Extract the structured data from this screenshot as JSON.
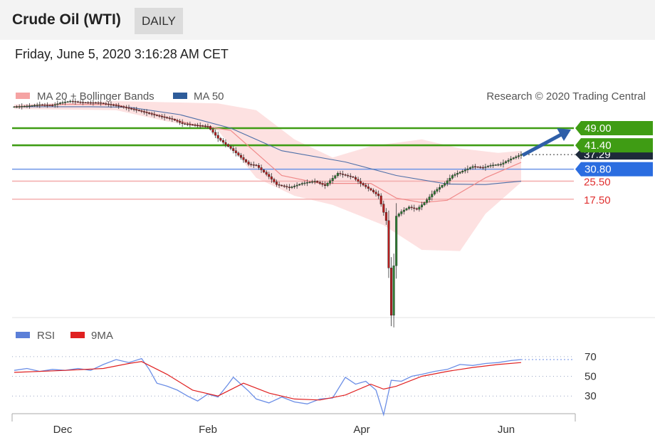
{
  "header": {
    "title": "Crude Oil (WTI)",
    "period": "DAILY"
  },
  "timestamp": "Friday, June 5, 2020 3:16:28 AM CET",
  "chart_data": [
    {
      "type": "candlestick",
      "legend": [
        {
          "label": "MA 20 + Bollinger Bands",
          "color": "#f08a8a"
        },
        {
          "label": "MA 50",
          "color": "#2e5c9a"
        }
      ],
      "credit": "Research © 2020 Trading Central",
      "x_labels": [
        "Dec",
        "Feb",
        "Apr",
        "Jun"
      ],
      "last_price": "37.29",
      "levels": [
        {
          "value": 49.0,
          "label": "49.00",
          "type": "target",
          "color": "#3f9c14"
        },
        {
          "value": 41.4,
          "label": "41.40",
          "type": "target",
          "color": "#3f9c14"
        },
        {
          "value": 30.8,
          "label": "30.80",
          "type": "pivot",
          "color": "#2b6de0"
        },
        {
          "value": 25.5,
          "label": "25.50",
          "type": "support",
          "color": "#e03030"
        },
        {
          "value": 17.5,
          "label": "17.50",
          "type": "support",
          "color": "#e03030"
        }
      ],
      "ylim": [
        -35,
        61
      ],
      "price_path": [
        [
          0,
          58.5
        ],
        [
          5,
          58.8
        ],
        [
          10,
          59.4
        ],
        [
          15,
          59.1
        ],
        [
          18,
          60.2
        ],
        [
          22,
          61.0
        ],
        [
          27,
          60.4
        ],
        [
          33,
          60.3
        ],
        [
          40,
          59.0
        ],
        [
          48,
          57.0
        ],
        [
          55,
          54.8
        ],
        [
          62,
          53.0
        ],
        [
          66,
          51.0
        ],
        [
          71,
          50.3
        ],
        [
          76,
          49.8
        ],
        [
          80,
          44.5
        ],
        [
          85,
          40.0
        ],
        [
          90,
          35.0
        ],
        [
          92,
          33.0
        ],
        [
          95,
          32.5
        ],
        [
          100,
          27.5
        ],
        [
          103,
          24.0
        ],
        [
          108,
          22.6
        ],
        [
          113,
          24.5
        ],
        [
          118,
          25.5
        ],
        [
          122,
          23.5
        ],
        [
          127,
          29.0
        ],
        [
          133,
          27.2
        ],
        [
          136,
          24.5
        ],
        [
          140,
          21.5
        ],
        [
          143,
          19.0
        ],
        [
          146,
          8.0
        ],
        [
          148,
          -34.0
        ],
        [
          150,
          10.0
        ],
        [
          152,
          12.0
        ],
        [
          155,
          14.0
        ],
        [
          158,
          13.0
        ],
        [
          161,
          16.0
        ],
        [
          165,
          21.0
        ],
        [
          169,
          24.5
        ],
        [
          172,
          28.0
        ],
        [
          176,
          30.0
        ],
        [
          180,
          32.0
        ],
        [
          184,
          31.5
        ],
        [
          187,
          32.5
        ],
        [
          191,
          33.0
        ],
        [
          195,
          35.4
        ],
        [
          199,
          37.3
        ]
      ],
      "ma20_path": [
        [
          0,
          58.5
        ],
        [
          20,
          59.6
        ],
        [
          40,
          59.5
        ],
        [
          55,
          55.3
        ],
        [
          70,
          50.6
        ],
        [
          85,
          48.0
        ],
        [
          95,
          38.0
        ],
        [
          105,
          28.0
        ],
        [
          120,
          24.5
        ],
        [
          140,
          24.5
        ],
        [
          150,
          18.0
        ],
        [
          160,
          16.0
        ],
        [
          170,
          17.0
        ],
        [
          185,
          27.0
        ],
        [
          199,
          33.8
        ]
      ],
      "ma50_path": [
        [
          0,
          58.5
        ],
        [
          30,
          58.5
        ],
        [
          45,
          58.3
        ],
        [
          65,
          55.0
        ],
        [
          85,
          49.0
        ],
        [
          105,
          39.0
        ],
        [
          130,
          34.0
        ],
        [
          150,
          28.0
        ],
        [
          170,
          24.2
        ],
        [
          185,
          24.0
        ],
        [
          199,
          25.5
        ]
      ],
      "bb_upper": [
        [
          0,
          59.5
        ],
        [
          40,
          61.0
        ],
        [
          60,
          60.5
        ],
        [
          80,
          60.0
        ],
        [
          95,
          57.0
        ],
        [
          110,
          44.0
        ],
        [
          125,
          36.0
        ],
        [
          140,
          41.0
        ],
        [
          160,
          44.0
        ],
        [
          175,
          40.0
        ],
        [
          190,
          38.0
        ],
        [
          199,
          39.0
        ]
      ],
      "bb_lower": [
        [
          0,
          57.5
        ],
        [
          40,
          57.0
        ],
        [
          60,
          52.0
        ],
        [
          80,
          48.0
        ],
        [
          95,
          27.0
        ],
        [
          110,
          19.0
        ],
        [
          125,
          15.0
        ],
        [
          145,
          6.0
        ],
        [
          160,
          -5.0
        ],
        [
          175,
          -5.5
        ],
        [
          185,
          11.0
        ],
        [
          199,
          25.0
        ]
      ]
    },
    {
      "type": "line",
      "legend": [
        {
          "label": "RSI",
          "color": "#5b7fd8"
        },
        {
          "label": "9MA",
          "color": "#e02020"
        }
      ],
      "y_ticks": [
        "70",
        "50",
        "30"
      ],
      "ylim": [
        15,
        80
      ],
      "rsi": [
        [
          0,
          56
        ],
        [
          5,
          58
        ],
        [
          10,
          55
        ],
        [
          15,
          57
        ],
        [
          20,
          56
        ],
        [
          25,
          58
        ],
        [
          30,
          56
        ],
        [
          35,
          62
        ],
        [
          40,
          67
        ],
        [
          45,
          64
        ],
        [
          50,
          68
        ],
        [
          53,
          57
        ],
        [
          56,
          43
        ],
        [
          60,
          40
        ],
        [
          64,
          36
        ],
        [
          68,
          30
        ],
        [
          72,
          25
        ],
        [
          76,
          32
        ],
        [
          80,
          29
        ],
        [
          84,
          42
        ],
        [
          86,
          49
        ],
        [
          89,
          42
        ],
        [
          92,
          35
        ],
        [
          95,
          27
        ],
        [
          100,
          23
        ],
        [
          105,
          29
        ],
        [
          110,
          24
        ],
        [
          115,
          22
        ],
        [
          120,
          27
        ],
        [
          125,
          28
        ],
        [
          130,
          49
        ],
        [
          134,
          42
        ],
        [
          138,
          45
        ],
        [
          142,
          36
        ],
        [
          145,
          11
        ],
        [
          148,
          46
        ],
        [
          152,
          45
        ],
        [
          156,
          50
        ],
        [
          160,
          52
        ],
        [
          165,
          55
        ],
        [
          170,
          57
        ],
        [
          175,
          62
        ],
        [
          180,
          61
        ],
        [
          185,
          63
        ],
        [
          190,
          64
        ],
        [
          195,
          66
        ],
        [
          199,
          67
        ]
      ],
      "ma9": [
        [
          0,
          54
        ],
        [
          20,
          56
        ],
        [
          35,
          58
        ],
        [
          45,
          63
        ],
        [
          50,
          65
        ],
        [
          60,
          52
        ],
        [
          70,
          36
        ],
        [
          80,
          30
        ],
        [
          90,
          43
        ],
        [
          100,
          33
        ],
        [
          110,
          27
        ],
        [
          120,
          26
        ],
        [
          130,
          31
        ],
        [
          140,
          42
        ],
        [
          145,
          37
        ],
        [
          150,
          40
        ],
        [
          160,
          50
        ],
        [
          170,
          55
        ],
        [
          180,
          59
        ],
        [
          190,
          62
        ],
        [
          199,
          64
        ]
      ]
    }
  ]
}
